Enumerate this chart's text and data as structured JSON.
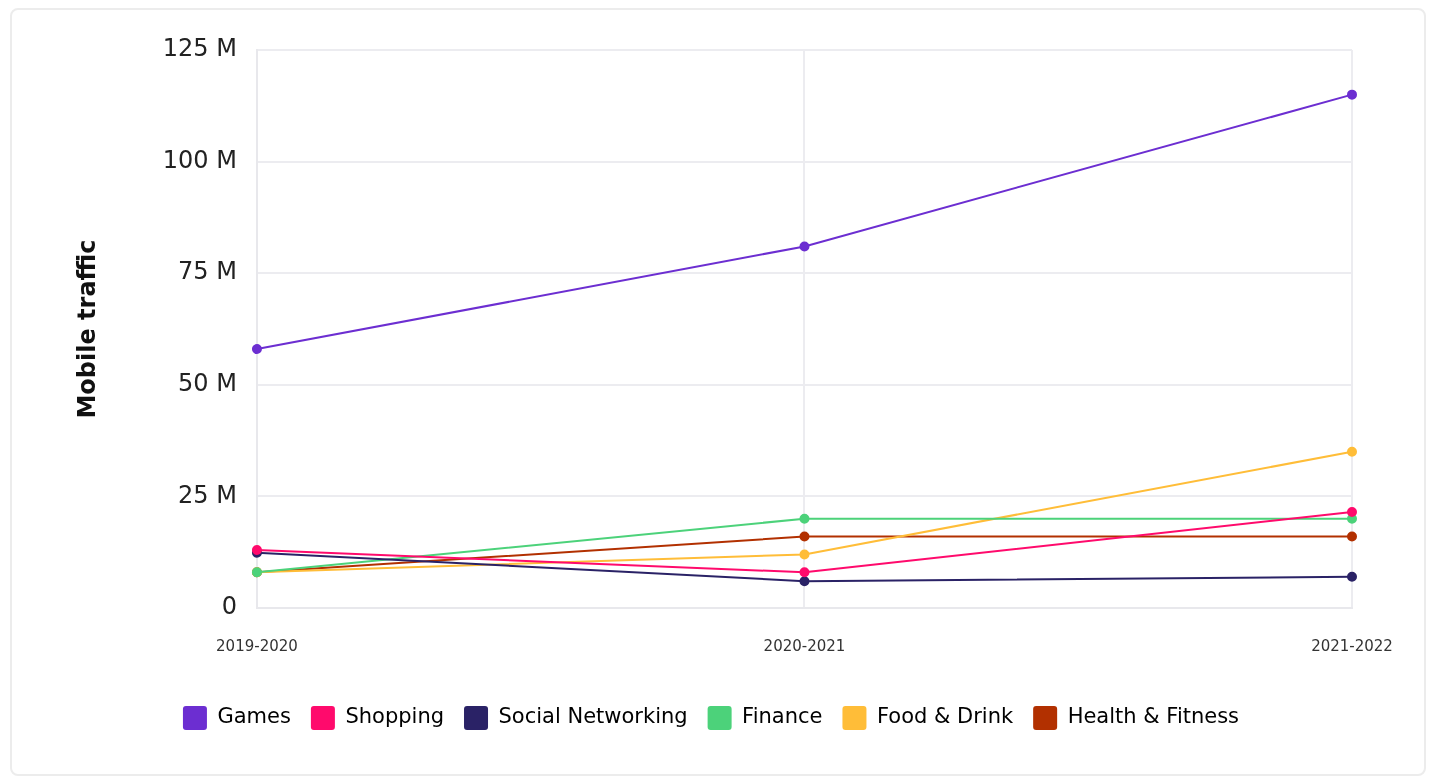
{
  "chart_data": {
    "type": "line",
    "ylabel": "Mobile traffic",
    "categories": [
      "2019-2020",
      "2020-2021",
      "2021-2022"
    ],
    "series": [
      {
        "name": "Games",
        "color": "#6c2ed1",
        "values": [
          58,
          81,
          115
        ]
      },
      {
        "name": "Shopping",
        "color": "#ff0a6c",
        "values": [
          13,
          8,
          21.5
        ]
      },
      {
        "name": "Social Networking",
        "color": "#2a2266",
        "values": [
          12.4,
          6,
          7
        ]
      },
      {
        "name": "Finance",
        "color": "#4cd27a",
        "values": [
          8,
          20,
          20
        ]
      },
      {
        "name": "Food & Drink",
        "color": "#ffbd38",
        "values": [
          8,
          12,
          35
        ]
      },
      {
        "name": "Health & Fitness",
        "color": "#b23000",
        "values": [
          8,
          16,
          16
        ]
      }
    ],
    "ylim": [
      0,
      125
    ],
    "yticks": [
      {
        "value": 0,
        "label": "0"
      },
      {
        "value": 25,
        "label": "25 M"
      },
      {
        "value": 50,
        "label": "50 M"
      },
      {
        "value": 75,
        "label": "75 M"
      },
      {
        "value": 100,
        "label": "100 M"
      },
      {
        "value": 125,
        "label": "125 M"
      }
    ],
    "grid": true,
    "legend": "bottom",
    "marker": "circle",
    "line_style": "solid"
  }
}
